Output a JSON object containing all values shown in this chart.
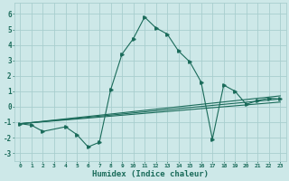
{
  "xlabel": "Humidex (Indice chaleur)",
  "background_color": "#cde8e8",
  "grid_color": "#a8cece",
  "line_color": "#1a6b5a",
  "xlim": [
    -0.5,
    23.5
  ],
  "ylim": [
    -3.5,
    6.7
  ],
  "xticks": [
    0,
    1,
    2,
    3,
    4,
    5,
    6,
    7,
    8,
    9,
    10,
    11,
    12,
    13,
    14,
    15,
    16,
    17,
    18,
    19,
    20,
    21,
    22,
    23
  ],
  "yticks": [
    -3,
    -2,
    -1,
    0,
    1,
    2,
    3,
    4,
    5,
    6
  ],
  "main_x": [
    0,
    1,
    2,
    4,
    5,
    6,
    7,
    8,
    9,
    10,
    11,
    12,
    13,
    14,
    15,
    16,
    17,
    18,
    19,
    20,
    21,
    22,
    23
  ],
  "main_y": [
    -1.1,
    -1.2,
    -1.6,
    -1.3,
    -1.8,
    -2.6,
    -2.3,
    1.1,
    3.4,
    4.4,
    5.8,
    5.1,
    4.7,
    3.6,
    2.9,
    1.6,
    -2.1,
    1.4,
    1.0,
    0.15,
    0.4,
    0.55,
    0.5
  ],
  "lines": [
    {
      "x": [
        0,
        23
      ],
      "y": [
        -1.1,
        0.5
      ]
    },
    {
      "x": [
        0,
        23
      ],
      "y": [
        -1.1,
        0.3
      ]
    },
    {
      "x": [
        0,
        23
      ],
      "y": [
        -1.1,
        0.7
      ]
    }
  ]
}
